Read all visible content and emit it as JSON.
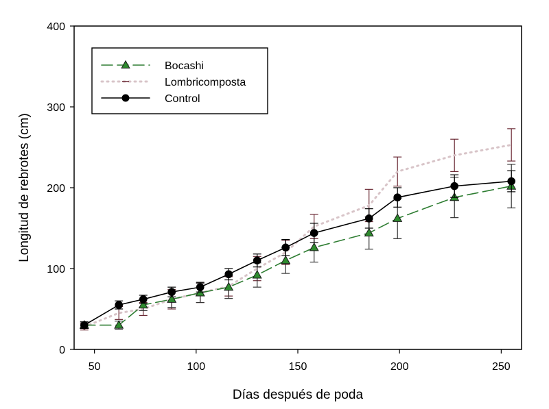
{
  "chart_data": {
    "type": "line",
    "title": "",
    "xlabel": "Días después de poda",
    "ylabel": "Longitud de rebrotes (cm)",
    "xlim": [
      40,
      260
    ],
    "ylim": [
      0,
      400
    ],
    "xticks": [
      50,
      100,
      150,
      200,
      250
    ],
    "yticks": [
      0,
      100,
      200,
      300,
      400
    ],
    "grid": false,
    "legend_position": "top-left",
    "series": [
      {
        "name": "Bocashi",
        "style": "dashed",
        "marker": "triangle",
        "color": "#2e7d32",
        "marker_color": "#2e8b2e",
        "errorbar_color": "#333333",
        "x": [
          45,
          62,
          74,
          88,
          102,
          116,
          130,
          144,
          158,
          185,
          199,
          227,
          255
        ],
        "y": [
          30,
          30,
          55,
          62,
          70,
          77,
          92,
          110,
          126,
          144,
          162,
          188,
          202
        ],
        "err": [
          4,
          5,
          7,
          10,
          12,
          14,
          15,
          16,
          18,
          20,
          25,
          25,
          27
        ]
      },
      {
        "name": "Lombricomposta",
        "style": "dotted",
        "marker": "none",
        "color": "#d8c4c8",
        "errorbar_color": "#6b2a35",
        "x": [
          45,
          62,
          74,
          88,
          102,
          116,
          130,
          144,
          158,
          185,
          199,
          227,
          255
        ],
        "y": [
          28,
          45,
          50,
          62,
          70,
          78,
          100,
          120,
          152,
          178,
          220,
          240,
          253
        ],
        "err": [
          4,
          8,
          8,
          12,
          12,
          12,
          15,
          15,
          15,
          20,
          18,
          20,
          20
        ]
      },
      {
        "name": "Control",
        "style": "solid",
        "marker": "circle",
        "color": "#000000",
        "errorbar_color": "#000000",
        "x": [
          45,
          62,
          74,
          88,
          102,
          116,
          130,
          144,
          158,
          185,
          199,
          227,
          255
        ],
        "y": [
          30,
          55,
          62,
          71,
          77,
          93,
          110,
          126,
          144,
          162,
          188,
          202,
          208
        ],
        "err": [
          4,
          5,
          5,
          6,
          6,
          7,
          8,
          10,
          12,
          12,
          12,
          14,
          13
        ]
      }
    ]
  }
}
